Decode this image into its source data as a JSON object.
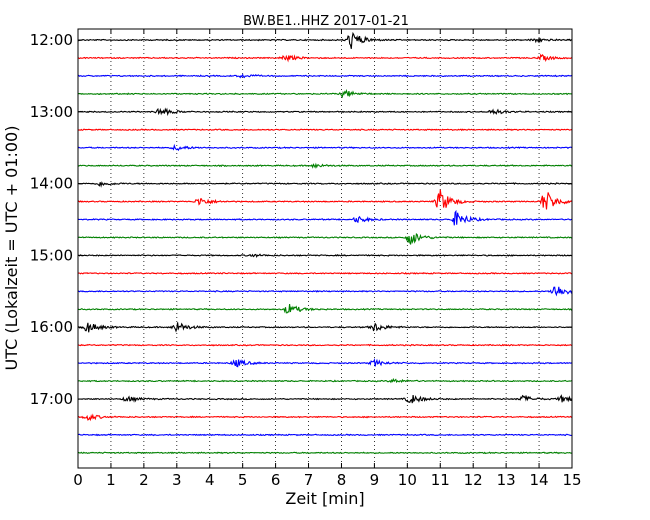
{
  "chart_data": {
    "type": "line",
    "title": "BW.BE1..HHZ 2017-01-21",
    "xlabel": "Zeit  [min]",
    "ylabel": "UTC (Lokalzeit = UTC + 01:00)",
    "xlim": [
      0,
      15
    ],
    "x_ticks": [
      "0",
      "1",
      "2",
      "3",
      "4",
      "5",
      "6",
      "7",
      "8",
      "9",
      "10",
      "11",
      "12",
      "13",
      "14",
      "15"
    ],
    "y_tick_labels": [
      "12:00",
      "13:00",
      "14:00",
      "15:00",
      "16:00",
      "17:00"
    ],
    "grid": "vertical dotted",
    "colors": [
      "#000000",
      "#ff0000",
      "#0000ff",
      "#008000"
    ],
    "series": [
      {
        "time": "12:00",
        "color": "#000000",
        "events": [
          {
            "x": 8.3,
            "amp": 1.0
          },
          {
            "x": 13.9,
            "amp": 0.25
          }
        ]
      },
      {
        "time": "12:15",
        "color": "#ff0000",
        "events": [
          {
            "x": 6.3,
            "amp": 0.35
          },
          {
            "x": 14.1,
            "amp": 0.3
          }
        ]
      },
      {
        "time": "12:30",
        "color": "#0000ff",
        "events": [
          {
            "x": 5.0,
            "amp": 0.2
          }
        ]
      },
      {
        "time": "12:45",
        "color": "#008000",
        "events": [
          {
            "x": 8.1,
            "amp": 0.4
          }
        ]
      },
      {
        "time": "13:00",
        "color": "#000000",
        "events": [
          {
            "x": 2.5,
            "amp": 0.45
          },
          {
            "x": 12.6,
            "amp": 0.3
          }
        ]
      },
      {
        "time": "13:15",
        "color": "#ff0000",
        "events": []
      },
      {
        "time": "13:30",
        "color": "#0000ff",
        "events": [
          {
            "x": 3.0,
            "amp": 0.3
          }
        ]
      },
      {
        "time": "13:45",
        "color": "#008000",
        "events": [
          {
            "x": 7.2,
            "amp": 0.2
          }
        ]
      },
      {
        "time": "14:00",
        "color": "#000000",
        "events": [
          {
            "x": 0.7,
            "amp": 0.25
          }
        ]
      },
      {
        "time": "14:15",
        "color": "#ff0000",
        "events": [
          {
            "x": 3.7,
            "amp": 0.45
          },
          {
            "x": 11.0,
            "amp": 1.3
          },
          {
            "x": 14.2,
            "amp": 1.3
          }
        ]
      },
      {
        "time": "14:30",
        "color": "#0000ff",
        "events": [
          {
            "x": 8.5,
            "amp": 0.35
          },
          {
            "x": 11.5,
            "amp": 0.9
          }
        ]
      },
      {
        "time": "14:45",
        "color": "#008000",
        "events": [
          {
            "x": 10.1,
            "amp": 0.8
          }
        ]
      },
      {
        "time": "15:00",
        "color": "#000000",
        "events": [
          {
            "x": 5.3,
            "amp": 0.15
          }
        ]
      },
      {
        "time": "15:15",
        "color": "#ff0000",
        "events": []
      },
      {
        "time": "15:30",
        "color": "#0000ff",
        "events": [
          {
            "x": 14.5,
            "amp": 0.8
          }
        ]
      },
      {
        "time": "15:45",
        "color": "#008000",
        "events": [
          {
            "x": 6.4,
            "amp": 0.6
          }
        ]
      },
      {
        "time": "16:00",
        "color": "#000000",
        "events": [
          {
            "x": 0.3,
            "amp": 0.6
          },
          {
            "x": 3.0,
            "amp": 0.6
          },
          {
            "x": 9.0,
            "amp": 0.5
          }
        ]
      },
      {
        "time": "16:15",
        "color": "#ff0000",
        "events": []
      },
      {
        "time": "16:30",
        "color": "#0000ff",
        "events": [
          {
            "x": 4.8,
            "amp": 0.45
          },
          {
            "x": 9.0,
            "amp": 0.35
          }
        ]
      },
      {
        "time": "16:45",
        "color": "#008000",
        "events": [
          {
            "x": 9.6,
            "amp": 0.2
          }
        ]
      },
      {
        "time": "17:00",
        "color": "#000000",
        "events": [
          {
            "x": 1.5,
            "amp": 0.3
          },
          {
            "x": 10.1,
            "amp": 0.55
          },
          {
            "x": 13.5,
            "amp": 0.35
          },
          {
            "x": 14.7,
            "amp": 0.35
          }
        ]
      },
      {
        "time": "17:15",
        "color": "#ff0000",
        "events": [
          {
            "x": 0.3,
            "amp": 0.35
          }
        ]
      },
      {
        "time": "17:30",
        "color": "#0000ff",
        "events": []
      },
      {
        "time": "17:45",
        "color": "#008000",
        "events": []
      }
    ]
  }
}
